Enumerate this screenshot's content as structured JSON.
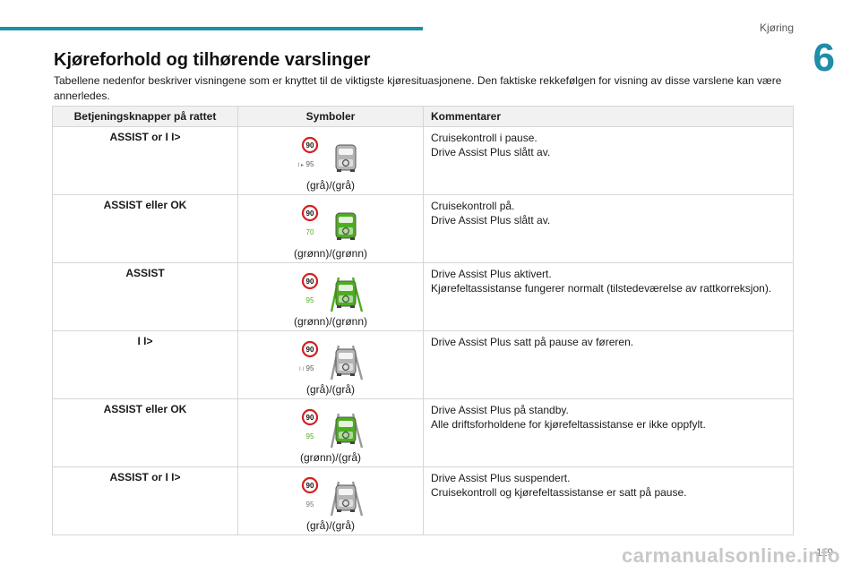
{
  "header": {
    "section": "Kjøring",
    "chapter_number": "6"
  },
  "page": {
    "title": "Kjøreforhold og tilhørende varslinger",
    "intro": "Tabellene nedenfor beskriver visningene som er knyttet til de viktigste kjøresituasjonene. Den faktiske rekkefølgen for visning av disse varslene kan være annerledes.",
    "page_number": "119",
    "watermark": "carmanualsonline.info"
  },
  "table": {
    "headers": [
      "Betjeningsknapper på rattet",
      "Symboler",
      "Kommentarer"
    ],
    "rows": [
      {
        "button": "ASSIST or I I>",
        "limit": "90",
        "pause": "I I ▸",
        "speed": "95",
        "speed_color": "#5a5a5a",
        "vehicle": "gray",
        "lanes": false,
        "lane_color": "#9a9a9a",
        "caption": "(grå)/(grå)",
        "comments": [
          "Cruisekontroll i pause.",
          "Drive Assist Plus slått av."
        ]
      },
      {
        "button": "ASSIST eller OK",
        "limit": "90",
        "pause": "",
        "speed": "70",
        "speed_color": "#4cae1f",
        "vehicle": "green",
        "lanes": false,
        "lane_color": "#9a9a9a",
        "caption": "(grønn)/(grønn)",
        "comments": [
          "Cruisekontroll på.",
          "Drive Assist Plus slått av."
        ]
      },
      {
        "button": "ASSIST",
        "limit": "90",
        "pause": "",
        "speed": "95",
        "speed_color": "#4cae1f",
        "vehicle": "green",
        "lanes": true,
        "lane_color": "#4cae1f",
        "caption": "(grønn)/(grønn)",
        "comments": [
          "Drive Assist Plus aktivert.",
          "Kjørefeltassistanse fungerer normalt (tilstedeværelse av rattkorreksjon)."
        ]
      },
      {
        "button": "I I>",
        "limit": "90",
        "pause": "I I",
        "speed": "95",
        "speed_color": "#5a5a5a",
        "vehicle": "gray",
        "lanes": true,
        "lane_color": "#9a9a9a",
        "caption": "(grå)/(grå)",
        "comments": [
          "Drive Assist Plus satt på pause av føreren."
        ]
      },
      {
        "button": "ASSIST eller OK",
        "limit": "90",
        "pause": "",
        "speed": "95",
        "speed_color": "#4cae1f",
        "vehicle": "green",
        "lanes": true,
        "lane_color": "#9a9a9a",
        "caption": "(grønn)/(grå)",
        "comments": [
          "Drive Assist Plus på standby.",
          "Alle driftsforholdene for kjørefeltassistanse er ikke oppfylt."
        ]
      },
      {
        "button": "ASSIST or I I>",
        "limit": "90",
        "pause": "",
        "speed": "95",
        "speed_color": "#7a7a7a",
        "vehicle": "gray",
        "lanes": true,
        "lane_color": "#9a9a9a",
        "caption": "(grå)/(grå)",
        "comments": [
          "Drive Assist Plus suspendert.",
          "Cruisekontroll og kjørefeltassistanse er satt på pause."
        ]
      }
    ]
  },
  "colors": {
    "accent": "#1f8ea8",
    "green": "#4cae1f",
    "gray": "#8a8a8a",
    "red": "#d32020"
  }
}
